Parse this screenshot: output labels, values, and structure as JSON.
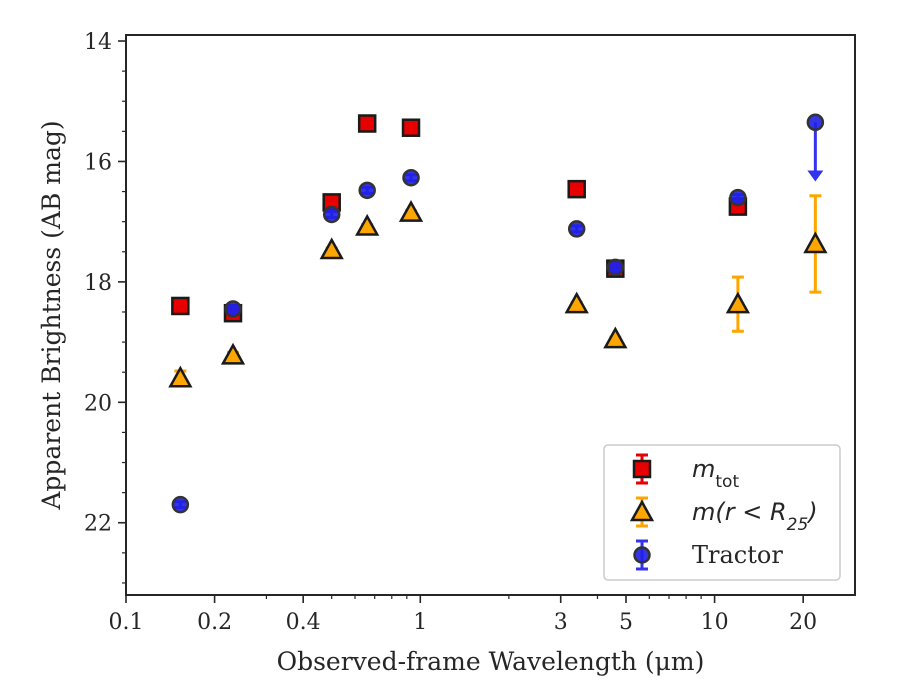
{
  "chart_data": {
    "type": "scatter",
    "title": "",
    "xlabel": "Observed-frame Wavelength (μm)",
    "ylabel": "Apparent Brightness (AB mag)",
    "xscale": "log",
    "xlim": [
      0.1,
      30
    ],
    "ylim": [
      23.2,
      13.9
    ],
    "y_inverted": true,
    "x_ticks": [
      0.1,
      0.2,
      0.4,
      1,
      3,
      5,
      10,
      20
    ],
    "x_tick_labels": [
      "0.1",
      "0.2",
      "0.4",
      "1",
      "3",
      "5",
      "10",
      "20"
    ],
    "y_ticks": [
      14,
      16,
      18,
      20,
      22
    ],
    "y_tick_labels": [
      "14",
      "16",
      "18",
      "20",
      "22"
    ],
    "grid": false,
    "legend_position": "lower-right",
    "series": [
      {
        "name": "m_tot",
        "marker": "square",
        "color": "#e60000",
        "error_color": "#e60000",
        "points": [
          {
            "x": 0.153,
            "y": 18.4,
            "err": 0.05
          },
          {
            "x": 0.231,
            "y": 18.52,
            "err": 0.1
          },
          {
            "x": 0.5,
            "y": 16.68,
            "err": 0.04
          },
          {
            "x": 0.66,
            "y": 15.37,
            "err": 0.03
          },
          {
            "x": 0.93,
            "y": 15.44,
            "err": 0.03
          },
          {
            "x": 3.4,
            "y": 16.46,
            "err": 0.03
          },
          {
            "x": 4.6,
            "y": 17.78,
            "err": 0.03
          },
          {
            "x": 12.0,
            "y": 16.75,
            "err": 0.08
          }
        ]
      },
      {
        "name": "m(r<R25)",
        "marker": "triangle",
        "color": "#ffa500",
        "error_color": "#ffa500",
        "points": [
          {
            "x": 0.153,
            "y": 19.6,
            "err": 0.12
          },
          {
            "x": 0.231,
            "y": 19.22,
            "err": 0.05
          },
          {
            "x": 0.5,
            "y": 17.47,
            "err": 0.03
          },
          {
            "x": 0.66,
            "y": 17.08,
            "err": 0.03
          },
          {
            "x": 0.93,
            "y": 16.85,
            "err": 0.03
          },
          {
            "x": 3.4,
            "y": 18.37,
            "err": 0.03
          },
          {
            "x": 4.6,
            "y": 18.95,
            "err": 0.03
          },
          {
            "x": 12.0,
            "y": 18.37,
            "err": 0.45
          },
          {
            "x": 22.0,
            "y": 17.37,
            "err": 0.8
          }
        ]
      },
      {
        "name": "Tractor",
        "marker": "circle",
        "color": "#1f1fe6",
        "error_color": "#3333ee",
        "points": [
          {
            "x": 0.153,
            "y": 21.7,
            "err": 0.05
          },
          {
            "x": 0.231,
            "y": 18.45,
            "err": 0.05
          },
          {
            "x": 0.5,
            "y": 16.88,
            "err": 0.05
          },
          {
            "x": 0.66,
            "y": 16.48,
            "err": 0.05
          },
          {
            "x": 0.93,
            "y": 16.27,
            "err": 0.05
          },
          {
            "x": 3.4,
            "y": 17.12,
            "err": 0.05
          },
          {
            "x": 4.6,
            "y": 17.76,
            "err": 0.05
          },
          {
            "x": 12.0,
            "y": 16.6,
            "err": 0.05
          },
          {
            "x": 22.0,
            "y": 15.35,
            "err": 0.0,
            "upper_limit": true,
            "limit_to": 16.3
          }
        ]
      }
    ],
    "legend": [
      {
        "label_main": "m",
        "label_sub": "tot",
        "series": 0
      },
      {
        "label_main": "m(r < R",
        "label_sub": "25",
        "label_tail": ")",
        "series": 1
      },
      {
        "label_main": "Tractor",
        "series": 2
      }
    ]
  }
}
